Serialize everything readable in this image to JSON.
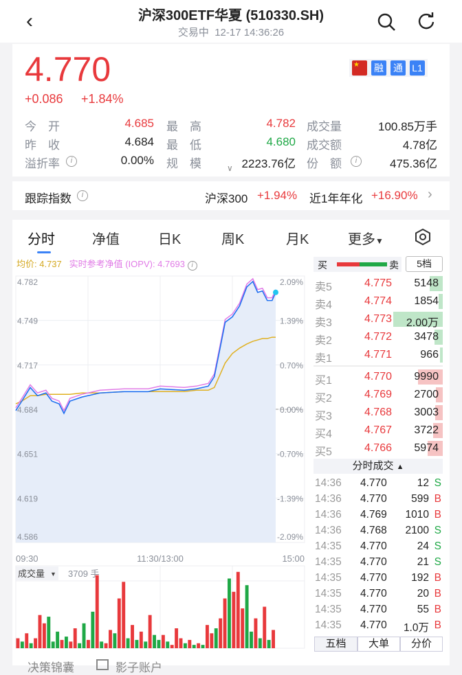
{
  "header": {
    "title": "沪深300ETF华夏 (510330.SH)",
    "status": "交易中",
    "datetime": "12-17 14:36:26"
  },
  "quote": {
    "price": "4.770",
    "change": "+0.086",
    "change_pct": "+1.84%",
    "badges": [
      "融",
      "通",
      "L1"
    ],
    "stats": [
      {
        "label": "今　开",
        "value": "4.685",
        "color": "red"
      },
      {
        "label": "最　高",
        "value": "4.782",
        "color": "red"
      },
      {
        "label": "成交量",
        "value": "100.85万手",
        "color": "dark"
      },
      {
        "label": "昨　收",
        "value": "4.684",
        "color": "dark"
      },
      {
        "label": "最　低",
        "value": "4.680",
        "color": "green"
      },
      {
        "label": "成交额",
        "value": "4.78亿",
        "color": "dark"
      },
      {
        "label": "溢折率",
        "value": "0.00%",
        "color": "dark",
        "info": true
      },
      {
        "label": "规　模",
        "value": "2223.76亿",
        "color": "dark"
      },
      {
        "label": "份　额",
        "value": "475.36亿",
        "color": "dark",
        "info": true
      }
    ]
  },
  "tracking": {
    "label": "跟踪指数",
    "index": "沪深300",
    "index_pct": "+1.94%",
    "annual_label": "近1年年化",
    "annual_pct": "+16.90%"
  },
  "tabs": [
    "分时",
    "净值",
    "日K",
    "周K",
    "月K",
    "更多"
  ],
  "active_tab": 0,
  "chart_legend": {
    "avg": "均价: 4.737",
    "iopv": "实时参考净值 (IOPV): 4.7693"
  },
  "colors": {
    "up": "#e8393c",
    "down": "#1fa846",
    "price_line": "#1e6ff0",
    "avg_line": "#e0b020",
    "iopv_line": "#e07ae6",
    "accent": "#3b82f6"
  },
  "chart_data": {
    "type": "line",
    "ylim": [
      4.586,
      4.782
    ],
    "pre_close": 4.684,
    "y_ticks": [
      "4.782",
      "4.749",
      "4.717",
      "4.684",
      "4.651",
      "4.619",
      "4.586"
    ],
    "y_pct_ticks": [
      "2.09%",
      "1.39%",
      "0.70%",
      "0.00%",
      "-0.70%",
      "-1.39%",
      "-2.09%"
    ],
    "x_ticks": [
      "09:30",
      "11:30/13:00",
      "15:00"
    ],
    "minutes": [
      0,
      5,
      12,
      18,
      25,
      30,
      36,
      40,
      45,
      55,
      70,
      90,
      110,
      120,
      140,
      150,
      160,
      165,
      170,
      174,
      180,
      186,
      192,
      197,
      201,
      205,
      209,
      213,
      216
    ],
    "price": [
      4.683,
      4.69,
      4.7,
      4.694,
      4.696,
      4.69,
      4.688,
      4.681,
      4.69,
      4.693,
      4.696,
      4.697,
      4.697,
      4.699,
      4.698,
      4.699,
      4.701,
      4.708,
      4.73,
      4.748,
      4.752,
      4.76,
      4.774,
      4.778,
      4.77,
      4.771,
      4.764,
      4.764,
      4.77
    ],
    "avg": [
      4.688,
      4.69,
      4.694,
      4.694,
      4.695,
      4.695,
      4.695,
      4.695,
      4.695,
      4.696,
      4.696,
      4.697,
      4.697,
      4.697,
      4.697,
      4.698,
      4.698,
      4.7,
      4.71,
      4.718,
      4.725,
      4.729,
      4.732,
      4.734,
      4.735,
      4.736,
      4.736,
      4.737,
      4.737
    ],
    "volume_label": "成交量",
    "volume_value": "3709 手",
    "volume": [
      [
        6,
        1
      ],
      [
        4,
        -1
      ],
      [
        9,
        1
      ],
      [
        3,
        -1
      ],
      [
        6,
        1
      ],
      [
        20,
        1
      ],
      [
        15,
        1
      ],
      [
        19,
        -1
      ],
      [
        4,
        -1
      ],
      [
        10,
        -1
      ],
      [
        5,
        1
      ],
      [
        7,
        -1
      ],
      [
        4,
        1
      ],
      [
        12,
        1
      ],
      [
        3,
        -1
      ],
      [
        15,
        -1
      ],
      [
        5,
        1
      ],
      [
        22,
        -1
      ],
      [
        44,
        1
      ],
      [
        4,
        -1
      ],
      [
        3,
        1
      ],
      [
        11,
        1
      ],
      [
        9,
        -1
      ],
      [
        30,
        1
      ],
      [
        40,
        1
      ],
      [
        6,
        -1
      ],
      [
        14,
        1
      ],
      [
        5,
        -1
      ],
      [
        10,
        1
      ],
      [
        4,
        -1
      ],
      [
        20,
        1
      ],
      [
        8,
        -1
      ],
      [
        5,
        -1
      ],
      [
        8,
        1
      ],
      [
        4,
        -1
      ],
      [
        2,
        1
      ],
      [
        12,
        1
      ],
      [
        6,
        1
      ],
      [
        3,
        -1
      ],
      [
        5,
        1
      ],
      [
        2,
        -1
      ],
      [
        3,
        1
      ],
      [
        2,
        -1
      ],
      [
        14,
        1
      ],
      [
        9,
        1
      ],
      [
        12,
        -1
      ],
      [
        18,
        1
      ],
      [
        30,
        1
      ],
      [
        42,
        -1
      ],
      [
        34,
        1
      ],
      [
        46,
        1
      ],
      [
        24,
        1
      ],
      [
        38,
        -1
      ],
      [
        10,
        -1
      ],
      [
        18,
        1
      ],
      [
        6,
        -1
      ],
      [
        25,
        1
      ],
      [
        5,
        -1
      ],
      [
        11,
        1
      ]
    ]
  },
  "orderbook": {
    "bar_buy": "买",
    "bar_sell": "卖",
    "level_btn": "5档",
    "asks": [
      {
        "label": "卖5",
        "price": "4.775",
        "vol": "5148",
        "fill": 0.26
      },
      {
        "label": "卖4",
        "price": "4.774",
        "vol": "1854",
        "fill": 0.09
      },
      {
        "label": "卖3",
        "price": "4.773",
        "vol": "2.00万",
        "fill": 1
      },
      {
        "label": "卖2",
        "price": "4.772",
        "vol": "3478",
        "fill": 0.17
      },
      {
        "label": "卖1",
        "price": "4.771",
        "vol": "966",
        "fill": 0.05
      }
    ],
    "bids": [
      {
        "label": "买1",
        "price": "4.770",
        "vol": "9990",
        "fill": 0.5
      },
      {
        "label": "买2",
        "price": "4.769",
        "vol": "2700",
        "fill": 0.14
      },
      {
        "label": "买3",
        "price": "4.768",
        "vol": "3003",
        "fill": 0.15
      },
      {
        "label": "买4",
        "price": "4.767",
        "vol": "3722",
        "fill": 0.19
      },
      {
        "label": "买5",
        "price": "4.766",
        "vol": "5974",
        "fill": 0.3
      }
    ],
    "trades_label": "分时成交",
    "trades": [
      [
        "14:36",
        "4.770",
        "12",
        "S"
      ],
      [
        "14:36",
        "4.770",
        "599",
        "B"
      ],
      [
        "14:36",
        "4.769",
        "1010",
        "B"
      ],
      [
        "14:36",
        "4.768",
        "2100",
        "S"
      ],
      [
        "14:35",
        "4.770",
        "24",
        "S"
      ],
      [
        "14:35",
        "4.770",
        "21",
        "S"
      ],
      [
        "14:35",
        "4.770",
        "192",
        "B"
      ],
      [
        "14:35",
        "4.770",
        "20",
        "B"
      ],
      [
        "14:35",
        "4.770",
        "55",
        "B"
      ],
      [
        "14:35",
        "4.770",
        "1.0万",
        "B"
      ]
    ],
    "bottom_tabs": [
      "五档",
      "大单",
      "分价"
    ]
  },
  "footer": {
    "left": "决策锦囊",
    "right": "影子账户"
  }
}
